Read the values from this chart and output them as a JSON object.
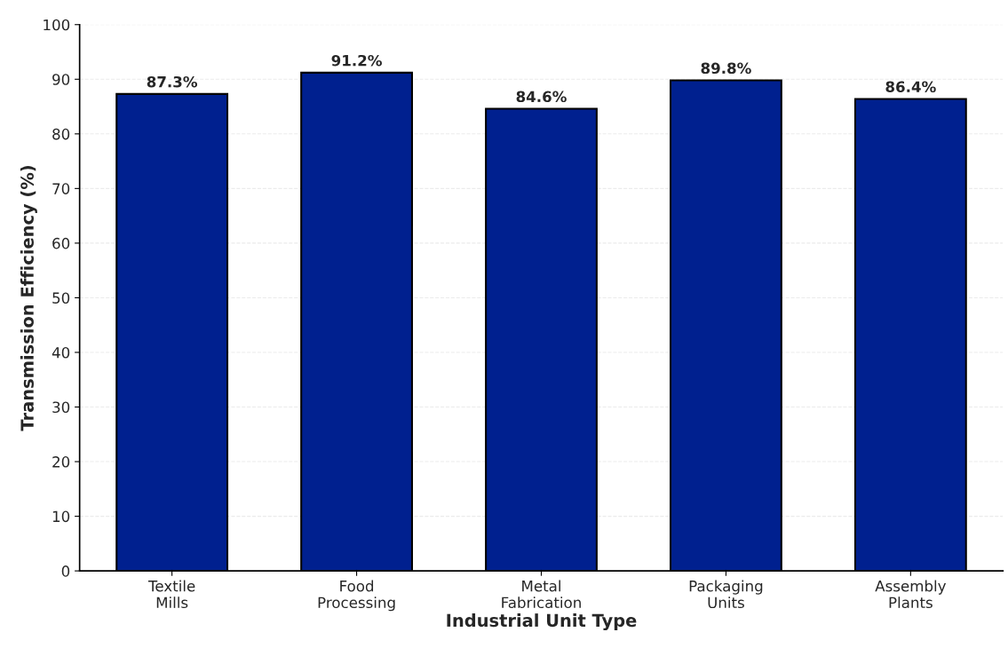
{
  "chart_data": {
    "type": "bar",
    "xlabel": "Industrial Unit Type",
    "ylabel": "Transmission Efficiency (%)",
    "categories": [
      "Textile\nMills",
      "Food\nProcessing",
      "Metal\nFabrication",
      "Packaging\nUnits",
      "Assembly\nPlants"
    ],
    "values": [
      87.3,
      91.2,
      84.6,
      89.8,
      86.4
    ],
    "value_labels": [
      "87.3%",
      "91.2%",
      "84.6%",
      "89.8%",
      "86.4%"
    ],
    "color": "#00208f",
    "ylim": [
      0,
      100
    ],
    "yticks": [
      0,
      10,
      20,
      30,
      40,
      50,
      60,
      70,
      80,
      90,
      100
    ],
    "grid": "y",
    "legend": false
  }
}
